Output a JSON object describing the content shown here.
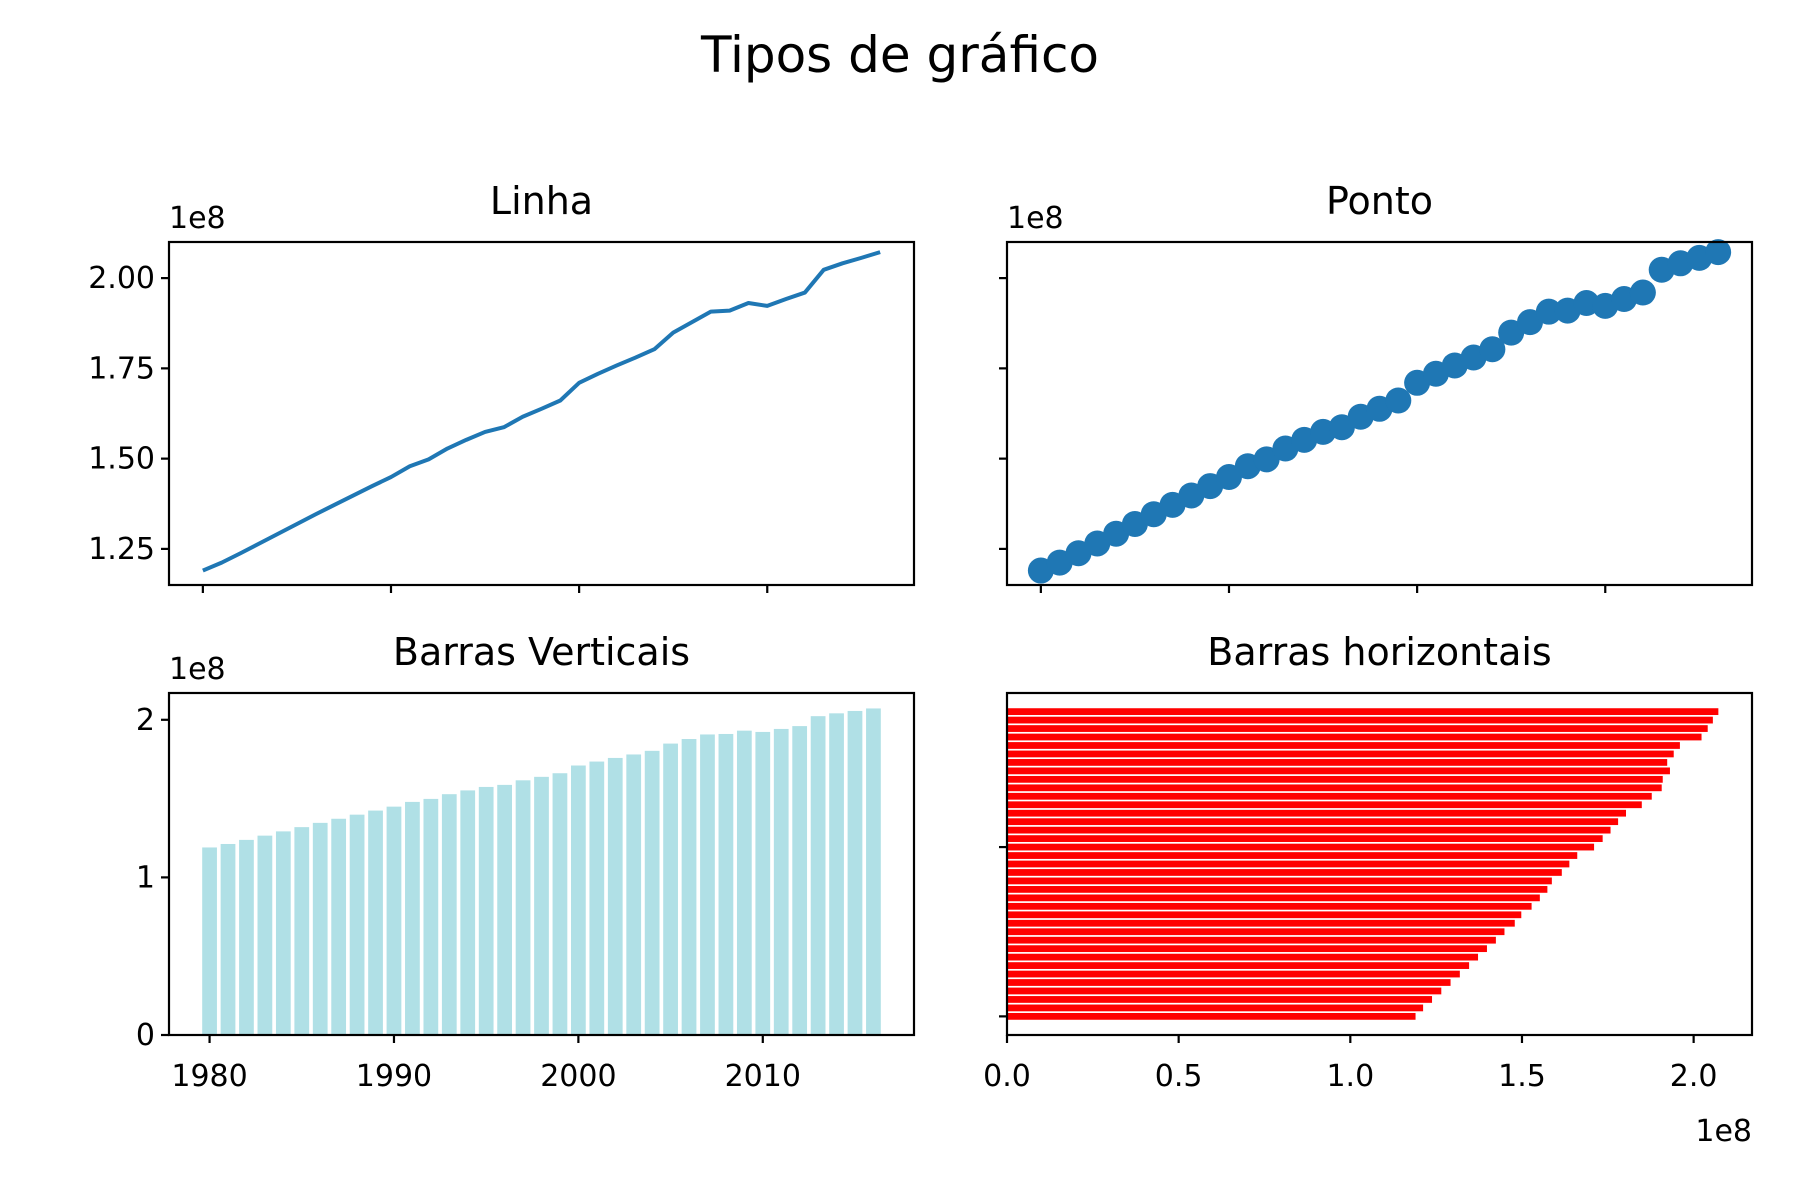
{
  "suptitle": "Tipos de gráfico",
  "colors": {
    "line": "#1f77b4",
    "points": "#1f77b4",
    "vbars": "#b0e0e6",
    "hbars": "#ff0000"
  },
  "chart_data": [
    {
      "type": "line",
      "title": "Linha",
      "offset_label": "1e8",
      "xlim": [
        1978.2,
        2017.8
      ],
      "ylim": [
        115000000.0,
        210000000.0
      ],
      "xticks": [
        1980,
        1990,
        2000,
        2010
      ],
      "yticks": [
        {
          "v": 125000000.0,
          "label": "1.25"
        },
        {
          "v": 150000000.0,
          "label": "1.50"
        },
        {
          "v": 175000000.0,
          "label": "1.75"
        },
        {
          "v": 200000000.0,
          "label": "2.00"
        }
      ],
      "show_xticklabels": false,
      "x": [
        1980,
        1981,
        1982,
        1983,
        1984,
        1985,
        1986,
        1987,
        1988,
        1989,
        1990,
        1991,
        1992,
        1993,
        1994,
        1995,
        1996,
        1997,
        1998,
        1999,
        2000,
        2001,
        2002,
        2003,
        2004,
        2005,
        2006,
        2007,
        2008,
        2009,
        2010,
        2011,
        2012,
        2013,
        2014,
        2015,
        2016
      ],
      "y": [
        119.0,
        121.2,
        123.8,
        126.5,
        129.2,
        131.9,
        134.6,
        137.2,
        139.8,
        142.4,
        144.9,
        147.9,
        149.8,
        152.8,
        155.2,
        157.4,
        158.7,
        161.6,
        163.8,
        166.1,
        171.0,
        173.5,
        175.8,
        178.0,
        180.3,
        184.9,
        187.8,
        190.7,
        191.0,
        193.1,
        192.3,
        194.2,
        196.0,
        202.3,
        204.1,
        205.6,
        207.2
      ],
      "y_multiplier": 1000000.0
    },
    {
      "type": "scatter",
      "title": "Ponto",
      "offset_label": "1e8",
      "xlim": [
        1978.2,
        2017.8
      ],
      "ylim": [
        115000000.0,
        210000000.0
      ],
      "xticks": [
        1980,
        1990,
        2000,
        2010
      ],
      "yticks": [
        125000000.0,
        150000000.0,
        175000000.0,
        200000000.0
      ],
      "show_xticklabels": false,
      "show_yticklabels": false,
      "x": [
        1980,
        1981,
        1982,
        1983,
        1984,
        1985,
        1986,
        1987,
        1988,
        1989,
        1990,
        1991,
        1992,
        1993,
        1994,
        1995,
        1996,
        1997,
        1998,
        1999,
        2000,
        2001,
        2002,
        2003,
        2004,
        2005,
        2006,
        2007,
        2008,
        2009,
        2010,
        2011,
        2012,
        2013,
        2014,
        2015,
        2016
      ],
      "y": [
        119.0,
        121.2,
        123.8,
        126.5,
        129.2,
        131.9,
        134.6,
        137.2,
        139.8,
        142.4,
        144.9,
        147.9,
        149.8,
        152.8,
        155.2,
        157.4,
        158.7,
        161.6,
        163.8,
        166.1,
        171.0,
        173.5,
        175.8,
        178.0,
        180.3,
        184.9,
        187.8,
        190.7,
        191.0,
        193.1,
        192.3,
        194.2,
        196.0,
        202.3,
        204.1,
        205.6,
        207.2
      ],
      "y_multiplier": 1000000.0
    },
    {
      "type": "bar",
      "title": "Barras Verticais",
      "offset_label": "1e8",
      "xlim": [
        1977.8,
        2018.2
      ],
      "ylim": [
        0,
        217000000.0
      ],
      "xticks": [
        1980,
        1990,
        2000,
        2010
      ],
      "xticklabels": [
        "1980",
        "1990",
        "2000",
        "2010"
      ],
      "yticks": [
        {
          "v": 0,
          "label": "0"
        },
        {
          "v": 100000000.0,
          "label": "1"
        },
        {
          "v": 200000000.0,
          "label": "2"
        }
      ],
      "bar_width": 0.8,
      "x": [
        1980,
        1981,
        1982,
        1983,
        1984,
        1985,
        1986,
        1987,
        1988,
        1989,
        1990,
        1991,
        1992,
        1993,
        1994,
        1995,
        1996,
        1997,
        1998,
        1999,
        2000,
        2001,
        2002,
        2003,
        2004,
        2005,
        2006,
        2007,
        2008,
        2009,
        2010,
        2011,
        2012,
        2013,
        2014,
        2015,
        2016
      ],
      "values": [
        119.0,
        121.2,
        123.8,
        126.5,
        129.2,
        131.9,
        134.6,
        137.2,
        139.8,
        142.4,
        144.9,
        147.9,
        149.8,
        152.8,
        155.2,
        157.4,
        158.7,
        161.6,
        163.8,
        166.1,
        171.0,
        173.5,
        175.8,
        178.0,
        180.3,
        184.9,
        187.8,
        190.7,
        191.0,
        193.1,
        192.3,
        194.2,
        196.0,
        202.3,
        204.1,
        205.6,
        207.2
      ],
      "value_multiplier": 1000000.0
    },
    {
      "type": "bar",
      "orientation": "horizontal",
      "title": "Barras horizontais",
      "offset_label": "1e8",
      "xlim": [
        0,
        217000000.0
      ],
      "ylim": [
        1977.8,
        2018.2
      ],
      "xticks": [
        {
          "v": 0,
          "label": "0.0"
        },
        {
          "v": 50000000.0,
          "label": "0.5"
        },
        {
          "v": 100000000.0,
          "label": "1.0"
        },
        {
          "v": 150000000.0,
          "label": "1.5"
        },
        {
          "v": 200000000.0,
          "label": "2.0"
        }
      ],
      "yticks": [
        1980,
        2000
      ],
      "show_yticklabels": false,
      "bar_height": 0.8,
      "y": [
        1980,
        1981,
        1982,
        1983,
        1984,
        1985,
        1986,
        1987,
        1988,
        1989,
        1990,
        1991,
        1992,
        1993,
        1994,
        1995,
        1996,
        1997,
        1998,
        1999,
        2000,
        2001,
        2002,
        2003,
        2004,
        2005,
        2006,
        2007,
        2008,
        2009,
        2010,
        2011,
        2012,
        2013,
        2014,
        2015,
        2016
      ],
      "values": [
        119.0,
        121.2,
        123.8,
        126.5,
        129.2,
        131.9,
        134.6,
        137.2,
        139.8,
        142.4,
        144.9,
        147.9,
        149.8,
        152.8,
        155.2,
        157.4,
        158.7,
        161.6,
        163.8,
        166.1,
        171.0,
        173.5,
        175.8,
        178.0,
        180.3,
        184.9,
        187.8,
        190.7,
        191.0,
        193.1,
        192.3,
        194.2,
        196.0,
        202.3,
        204.1,
        205.6,
        207.2
      ],
      "value_multiplier": 1000000.0
    }
  ]
}
